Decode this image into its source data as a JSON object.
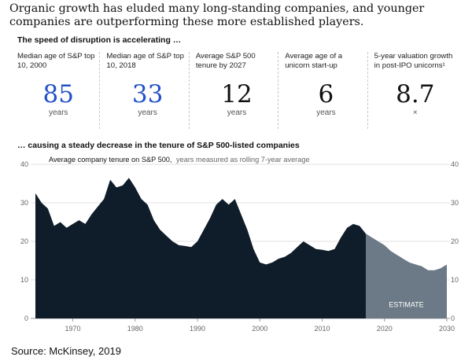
{
  "headline": "Organic growth has eluded many long-standing companies, and younger companies are outperforming these more established players.",
  "panel_title": "The speed of disruption is accelerating …",
  "stats": [
    {
      "label": "Median age of S&P top 10, 2000",
      "value": "85",
      "unit": "years",
      "color": "#2251c8"
    },
    {
      "label": "Median age of S&P top 10, 2018",
      "value": "33",
      "unit": "years",
      "color": "#2251c8"
    },
    {
      "label": "Average S&P 500 tenure by 2027",
      "value": "12",
      "unit": "years",
      "color": "#111111"
    },
    {
      "label": "Average age of a unicorn start-up",
      "value": "6",
      "unit": "years",
      "color": "#111111"
    },
    {
      "label": "5-year valuation growth in post-IPO unicorns¹",
      "value": "8.7",
      "unit": "×",
      "color": "#111111"
    }
  ],
  "chart_title": "… causing a steady decrease in the tenure of S&P 500-listed companies",
  "chart_data": {
    "type": "area",
    "title": "Average company tenure on S&P 500,",
    "subtitle": "years measured as rolling 7-year average",
    "annotation": "ESTIMATE",
    "xlim": [
      1964,
      2030
    ],
    "ylim": [
      0,
      40
    ],
    "x_ticks": [
      "1970",
      "1980",
      "1990",
      "2000",
      "2010",
      "2020",
      "2030"
    ],
    "y_ticks": [
      "0",
      "10",
      "20",
      "30",
      "40"
    ],
    "grid": true,
    "colors": {
      "actual": "#0f1c29",
      "estimate": "#6b7a86"
    },
    "series": [
      {
        "kind": "actual",
        "x": [
          1964,
          1965,
          1966,
          1967,
          1968,
          1969,
          1970,
          1971,
          1972,
          1973,
          1974,
          1975,
          1976,
          1977,
          1978,
          1979,
          1980,
          1981,
          1982,
          1983,
          1984,
          1985,
          1986,
          1987,
          1988,
          1989,
          1990,
          1991,
          1992,
          1993,
          1994,
          1995,
          1996,
          1997,
          1998,
          1999,
          2000,
          2001,
          2002,
          2003,
          2004,
          2005,
          2006,
          2007,
          2008,
          2009,
          2010,
          2011,
          2012,
          2013,
          2014,
          2015,
          2016,
          2017
        ],
        "values": [
          32.5,
          30,
          28.5,
          24,
          25,
          23.5,
          24.5,
          25.5,
          24.5,
          27,
          29,
          31,
          36,
          34,
          34.5,
          36.5,
          34,
          31,
          29.5,
          25.5,
          23,
          21.5,
          20,
          19,
          18.8,
          18.5,
          20,
          23,
          26,
          29.5,
          31,
          29.5,
          31,
          27,
          23,
          18,
          14.5,
          14,
          14.5,
          15.5,
          16,
          17,
          18.5,
          20,
          19,
          18,
          17.8,
          17.5,
          18,
          21,
          23.5,
          24.5,
          24,
          22
        ]
      },
      {
        "kind": "estimate",
        "x": [
          2017,
          2018,
          2019,
          2020,
          2021,
          2022,
          2023,
          2024,
          2025,
          2026,
          2027,
          2028,
          2029,
          2030
        ],
        "values": [
          22,
          21,
          20,
          19,
          17.5,
          16.5,
          15.5,
          14.5,
          14,
          13.5,
          12.5,
          12.5,
          13,
          14
        ]
      }
    ]
  },
  "source": "Source: McKinsey, 2019"
}
